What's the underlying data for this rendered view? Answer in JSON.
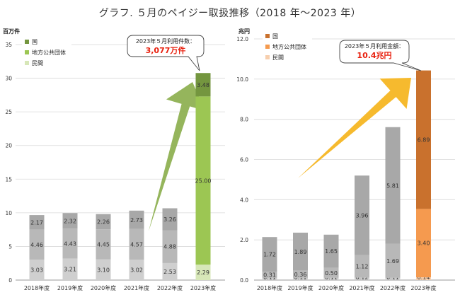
{
  "title": "グラフ. ５月のペイジー取扱推移（2018 年～2023 年）",
  "chart_data": [
    {
      "type": "bar",
      "stacked": true,
      "unit_label": "百万件",
      "ylim": [
        0,
        35
      ],
      "yticks": [
        "0",
        "5",
        "10",
        "15",
        "20",
        "25",
        "30",
        "35"
      ],
      "ytick_values": [
        0,
        5,
        10,
        15,
        20,
        25,
        30,
        35
      ],
      "grid": true,
      "legend_position": "top-left",
      "categories": [
        "2018年度",
        "2019年度",
        "2020年度",
        "2021年度",
        "2022年度",
        "2023年度"
      ],
      "series": [
        {
          "name": "民間",
          "values": [
            3.03,
            3.21,
            3.1,
            3.02,
            2.53,
            2.29
          ],
          "labels": [
            "3.03",
            "3.21",
            "3.10",
            "3.02",
            "2.53",
            "2.29"
          ]
        },
        {
          "name": "地方公共団体",
          "values": [
            4.46,
            4.43,
            4.45,
            4.57,
            4.88,
            25.0
          ],
          "labels": [
            "4.46",
            "4.43",
            "4.45",
            "4.57",
            "4.88",
            "25.00"
          ]
        },
        {
          "name": "国",
          "values": [
            2.17,
            2.32,
            2.26,
            2.73,
            3.26,
            3.48
          ],
          "labels": [
            "2.17",
            "2.32",
            "2.26",
            "2.73",
            "3.26",
            "3.48"
          ]
        }
      ],
      "callout": {
        "line1": "2023年５月利用件数：",
        "line2": "3,077万件"
      }
    },
    {
      "type": "bar",
      "stacked": true,
      "unit_label": "兆円",
      "ylim": [
        0,
        12
      ],
      "yticks": [
        "0.0",
        "2.0",
        "4.0",
        "6.0",
        "8.0",
        "10.0",
        "12.0"
      ],
      "ytick_values": [
        0,
        2,
        4,
        6,
        8,
        10,
        12
      ],
      "grid": true,
      "legend_position": "top-left",
      "categories": [
        "2018年度",
        "2019年度",
        "2020年度",
        "2021年度",
        "2022年度",
        "2023年度"
      ],
      "series": [
        {
          "name": "民間",
          "values": [
            0.11,
            0.11,
            0.11,
            0.12,
            0.11,
            0.14
          ],
          "labels": [
            "0.11",
            "0.11",
            "0.11",
            "0.12",
            "0.11",
            "0.14"
          ]
        },
        {
          "name": "地方公共団体",
          "values": [
            0.31,
            0.36,
            0.5,
            1.12,
            1.69,
            3.4
          ],
          "labels": [
            "0.31",
            "0.36",
            "0.50",
            "1.12",
            "1.69",
            "3.40"
          ]
        },
        {
          "name": "国",
          "values": [
            1.72,
            1.89,
            1.65,
            3.96,
            5.81,
            6.89
          ],
          "labels": [
            "1.72",
            "1.89",
            "1.65",
            "3.96",
            "5.81",
            "6.89"
          ]
        }
      ],
      "callout": {
        "line1": "2023年５月利用金額：",
        "line2": "10.4兆円"
      }
    }
  ],
  "colors": {
    "gray": [
      "#cfcfcf",
      "#b8b8b8",
      "#a8a8a8"
    ],
    "green": [
      "#d7e7b8",
      "#9cc653",
      "#74963f"
    ],
    "orange": [
      "#f7cfae",
      "#f59a4f",
      "#c9712d"
    ],
    "arrow_green": "#8fb153",
    "arrow_orange": "#f6b623",
    "grid": "#d9d9d9",
    "accent_red": "#e8200e"
  }
}
